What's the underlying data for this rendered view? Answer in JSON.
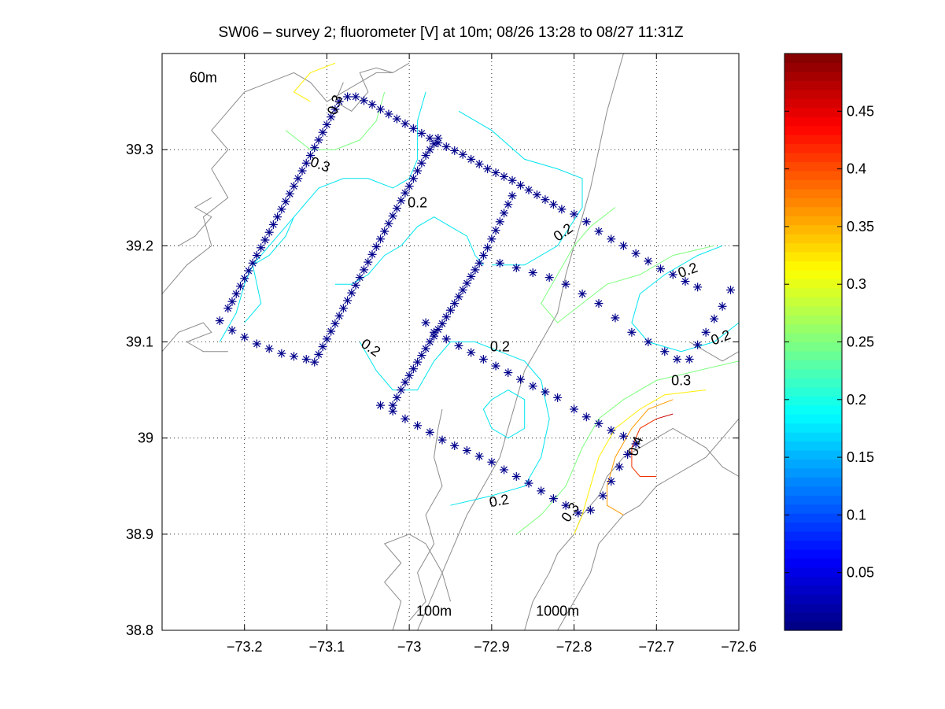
{
  "chart_data": {
    "type": "scatter",
    "title": "SW06 – survey 2; fluorometer [V] at 10m; 08/26 13:28 to 08/27 11:31Z",
    "xlabel": "",
    "ylabel": "",
    "xlim": [
      -73.3,
      -72.6
    ],
    "ylim": [
      38.8,
      39.4
    ],
    "x_ticks": [
      -73.2,
      -73.1,
      -73.0,
      -72.9,
      -72.8,
      -72.7,
      -72.6
    ],
    "x_tick_labels": [
      "−73.2",
      "−73.1",
      "−73",
      "−72.9",
      "−72.8",
      "−72.7",
      "−72.6"
    ],
    "y_ticks": [
      38.8,
      38.9,
      39.0,
      39.1,
      39.2,
      39.3
    ],
    "y_tick_labels": [
      "38.8",
      "38.9",
      "39",
      "39.1",
      "39.2",
      "39.3"
    ],
    "grid": true,
    "grid_style": "dotted",
    "marker": "*",
    "marker_color": "#00008b",
    "depth_labels": [
      {
        "text": "60m",
        "x": -73.25,
        "y": 39.37
      },
      {
        "text": "100m",
        "x": -72.97,
        "y": 38.815
      },
      {
        "text": "1000m",
        "x": -72.82,
        "y": 38.815
      }
    ],
    "contour_labels": [
      {
        "text": "0.3",
        "x": -73.085,
        "y": 39.345,
        "angle": -70
      },
      {
        "text": "0.3",
        "x": -73.11,
        "y": 39.28,
        "angle": 20
      },
      {
        "text": "0.2",
        "x": -72.99,
        "y": 39.24,
        "angle": 0
      },
      {
        "text": "0.2",
        "x": -72.81,
        "y": 39.21,
        "angle": -35
      },
      {
        "text": "0.2",
        "x": -72.66,
        "y": 39.17,
        "angle": -20
      },
      {
        "text": "0.2",
        "x": -73.05,
        "y": 39.09,
        "angle": 35
      },
      {
        "text": "0.2",
        "x": -72.89,
        "y": 39.09,
        "angle": 0
      },
      {
        "text": "0.2",
        "x": -72.62,
        "y": 39.1,
        "angle": -20
      },
      {
        "text": "0.3",
        "x": -72.67,
        "y": 39.055,
        "angle": 0
      },
      {
        "text": "0.4",
        "x": -72.72,
        "y": 38.99,
        "angle": -70
      },
      {
        "text": "0.2",
        "x": -72.89,
        "y": 38.93,
        "angle": -10
      },
      {
        "text": "0.3",
        "x": -72.8,
        "y": 38.92,
        "angle": -55
      }
    ],
    "series": [
      {
        "points": [
          [
            -73.23,
            39.122
          ],
          [
            -73.22,
            39.135
          ],
          [
            -73.215,
            39.142
          ],
          [
            -73.21,
            39.15
          ],
          [
            -73.205,
            39.158
          ],
          [
            -73.2,
            39.166
          ],
          [
            -73.195,
            39.174
          ],
          [
            -73.19,
            39.182
          ],
          [
            -73.185,
            39.19
          ],
          [
            -73.18,
            39.198
          ],
          [
            -73.175,
            39.206
          ],
          [
            -73.17,
            39.214
          ],
          [
            -73.165,
            39.222
          ],
          [
            -73.16,
            39.23
          ],
          [
            -73.155,
            39.238
          ],
          [
            -73.15,
            39.246
          ],
          [
            -73.145,
            39.254
          ],
          [
            -73.14,
            39.262
          ],
          [
            -73.135,
            39.27
          ],
          [
            -73.13,
            39.278
          ],
          [
            -73.125,
            39.286
          ],
          [
            -73.12,
            39.294
          ],
          [
            -73.115,
            39.302
          ],
          [
            -73.11,
            39.31
          ],
          [
            -73.105,
            39.318
          ],
          [
            -73.1,
            39.326
          ],
          [
            -73.095,
            39.334
          ],
          [
            -73.09,
            39.342
          ],
          [
            -73.085,
            39.35
          ],
          [
            -73.075,
            39.355
          ],
          [
            -73.065,
            39.355
          ],
          [
            -73.055,
            39.351
          ],
          [
            -73.045,
            39.347
          ],
          [
            -73.035,
            39.342
          ],
          [
            -73.025,
            39.337
          ],
          [
            -73.015,
            39.332
          ],
          [
            -73.005,
            39.327
          ],
          [
            -72.995,
            39.322
          ],
          [
            -72.985,
            39.317
          ],
          [
            -72.975,
            39.312
          ],
          [
            -72.965,
            39.307
          ],
          [
            -72.955,
            39.303
          ],
          [
            -72.945,
            39.299
          ],
          [
            -72.935,
            39.295
          ],
          [
            -72.925,
            39.29
          ],
          [
            -72.915,
            39.285
          ],
          [
            -72.905,
            39.28
          ],
          [
            -72.895,
            39.276
          ],
          [
            -72.885,
            39.272
          ],
          [
            -72.875,
            39.268
          ],
          [
            -72.865,
            39.263
          ],
          [
            -72.855,
            39.258
          ],
          [
            -72.845,
            39.253
          ],
          [
            -72.835,
            39.248
          ],
          [
            -72.825,
            39.243
          ],
          [
            -72.815,
            39.238
          ],
          [
            -72.8,
            39.233
          ],
          [
            -72.785,
            39.225
          ],
          [
            -72.77,
            39.215
          ],
          [
            -72.755,
            39.207
          ],
          [
            -72.74,
            39.2
          ],
          [
            -72.725,
            39.192
          ],
          [
            -72.71,
            39.184
          ],
          [
            -72.695,
            39.176
          ],
          [
            -72.68,
            39.17
          ],
          [
            -72.665,
            39.163
          ],
          [
            -72.65,
            39.157
          ],
          [
            -72.61,
            39.154
          ],
          [
            -72.62,
            39.137
          ],
          [
            -72.63,
            39.124
          ],
          [
            -72.64,
            39.11
          ],
          [
            -72.65,
            39.097
          ],
          [
            -72.66,
            39.082
          ],
          [
            -72.675,
            39.082
          ],
          [
            -72.69,
            39.09
          ],
          [
            -72.71,
            39.1
          ],
          [
            -72.73,
            39.11
          ],
          [
            -72.75,
            39.125
          ],
          [
            -72.77,
            39.14
          ],
          [
            -72.79,
            39.15
          ],
          [
            -72.81,
            39.16
          ],
          [
            -72.83,
            39.167
          ],
          [
            -72.85,
            39.172
          ],
          [
            -72.87,
            39.177
          ],
          [
            -72.89,
            39.182
          ],
          [
            -72.875,
            39.252
          ],
          [
            -72.88,
            39.243
          ],
          [
            -72.885,
            39.234
          ],
          [
            -72.89,
            39.225
          ],
          [
            -72.895,
            39.216
          ],
          [
            -72.9,
            39.207
          ],
          [
            -72.905,
            39.198
          ],
          [
            -72.91,
            39.19
          ],
          [
            -72.915,
            39.182
          ],
          [
            -72.92,
            39.175
          ],
          [
            -72.925,
            39.168
          ],
          [
            -72.93,
            39.161
          ],
          [
            -72.935,
            39.154
          ],
          [
            -72.94,
            39.147
          ],
          [
            -72.945,
            39.14
          ],
          [
            -72.95,
            39.133
          ],
          [
            -72.955,
            39.126
          ],
          [
            -72.96,
            39.119
          ],
          [
            -72.965,
            39.113
          ],
          [
            -72.97,
            39.106
          ],
          [
            -72.975,
            39.1
          ],
          [
            -72.98,
            39.093
          ],
          [
            -72.985,
            39.086
          ],
          [
            -72.99,
            39.079
          ],
          [
            -72.995,
            39.072
          ],
          [
            -73.0,
            39.065
          ],
          [
            -73.005,
            39.058
          ],
          [
            -73.01,
            39.05
          ],
          [
            -73.015,
            39.042
          ],
          [
            -73.02,
            39.034
          ],
          [
            -72.98,
            39.12
          ],
          [
            -72.97,
            39.11
          ],
          [
            -72.955,
            39.103
          ],
          [
            -72.94,
            39.096
          ],
          [
            -72.925,
            39.089
          ],
          [
            -72.91,
            39.082
          ],
          [
            -72.895,
            39.075
          ],
          [
            -72.88,
            39.068
          ],
          [
            -72.865,
            39.061
          ],
          [
            -72.85,
            39.054
          ],
          [
            -72.835,
            39.048
          ],
          [
            -72.82,
            39.042
          ],
          [
            -72.8,
            39.03
          ],
          [
            -72.785,
            39.022
          ],
          [
            -72.77,
            39.015
          ],
          [
            -72.755,
            39.008
          ],
          [
            -72.74,
            39.002
          ],
          [
            -72.725,
            38.994
          ],
          [
            -72.735,
            38.983
          ],
          [
            -72.745,
            38.97
          ],
          [
            -72.755,
            38.955
          ],
          [
            -72.765,
            38.94
          ],
          [
            -72.78,
            38.925
          ],
          [
            -72.795,
            38.922
          ],
          [
            -72.81,
            38.93
          ],
          [
            -72.825,
            38.937
          ],
          [
            -72.84,
            38.945
          ],
          [
            -72.855,
            38.953
          ],
          [
            -72.87,
            38.96
          ],
          [
            -72.885,
            38.967
          ],
          [
            -72.9,
            38.975
          ],
          [
            -72.915,
            38.981
          ],
          [
            -72.93,
            38.987
          ],
          [
            -72.945,
            38.992
          ],
          [
            -72.96,
            38.998
          ],
          [
            -72.975,
            39.006
          ],
          [
            -72.99,
            39.013
          ],
          [
            -73.005,
            39.02
          ],
          [
            -73.02,
            39.028
          ],
          [
            -73.035,
            39.034
          ],
          [
            -73.0,
            39.262
          ],
          [
            -72.995,
            39.27
          ],
          [
            -72.99,
            39.278
          ],
          [
            -72.985,
            39.286
          ],
          [
            -72.98,
            39.294
          ],
          [
            -72.975,
            39.3
          ],
          [
            -72.97,
            39.306
          ],
          [
            -72.965,
            39.312
          ],
          [
            -73.005,
            39.255
          ],
          [
            -73.01,
            39.247
          ],
          [
            -73.015,
            39.239
          ],
          [
            -73.02,
            39.231
          ],
          [
            -73.025,
            39.223
          ],
          [
            -73.03,
            39.215
          ],
          [
            -73.035,
            39.207
          ],
          [
            -73.04,
            39.199
          ],
          [
            -73.045,
            39.191
          ],
          [
            -73.05,
            39.183
          ],
          [
            -73.055,
            39.175
          ],
          [
            -73.06,
            39.167
          ],
          [
            -73.065,
            39.159
          ],
          [
            -73.07,
            39.151
          ],
          [
            -73.075,
            39.143
          ],
          [
            -73.08,
            39.135
          ],
          [
            -73.085,
            39.127
          ],
          [
            -73.09,
            39.119
          ],
          [
            -73.095,
            39.111
          ],
          [
            -73.1,
            39.103
          ],
          [
            -73.105,
            39.095
          ],
          [
            -73.11,
            39.087
          ],
          [
            -73.115,
            39.079
          ],
          [
            -73.125,
            39.082
          ],
          [
            -73.14,
            39.085
          ],
          [
            -73.155,
            39.088
          ],
          [
            -73.17,
            39.093
          ],
          [
            -73.185,
            39.098
          ],
          [
            -73.2,
            39.105
          ],
          [
            -73.215,
            39.112
          ]
        ]
      }
    ],
    "colorbar": {
      "colormap": "jet",
      "min": 0.0,
      "max": 0.5,
      "tick_values": [
        0.05,
        0.1,
        0.15,
        0.2,
        0.25,
        0.3,
        0.35,
        0.4,
        0.45
      ],
      "tick_labels": [
        "0.05",
        "0.1",
        "0.15",
        "0.2",
        "0.25",
        "0.3",
        "0.35",
        "0.4",
        "0.45"
      ]
    },
    "colors": {
      "coast": "#8c8c8c",
      "contour_02": "#00e5ee",
      "contour_025": "#7fff7f",
      "contour_03": "#ffee00",
      "contour_035": "#ff9900",
      "contour_04": "#ee3300",
      "contour_045": "#cc0000"
    }
  }
}
